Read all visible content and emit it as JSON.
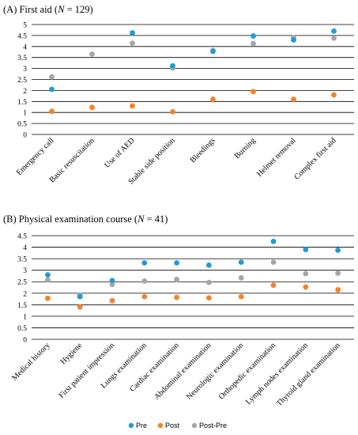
{
  "colors": {
    "pre": "#1f9bd7",
    "post": "#f5822a",
    "post_pre": "#a6a6a6"
  },
  "legend": [
    {
      "label": "Pre",
      "color": "#1f9bd7"
    },
    {
      "label": "Post",
      "color": "#f5822a"
    },
    {
      "label": "Post-Pre",
      "color": "#a6a6a6"
    }
  ],
  "chart_data": [
    {
      "type": "scatter",
      "title_prefix": "(A) First aid (",
      "title_n_label": "N",
      "title_suffix": " = 129)",
      "ylim": [
        0,
        5
      ],
      "yticks": [
        "0",
        "0.5",
        "1",
        "1.5",
        "2",
        "2.5",
        "3",
        "3.5",
        "4",
        "4.5",
        "5"
      ],
      "grid": true,
      "legend_placement": "bottom",
      "categories": [
        "Emergency call",
        "Basic resuscitation",
        "Use of AED",
        "Stable side position",
        "Bleedings",
        "Burning",
        "Helmet removal",
        "Complex first aid"
      ],
      "series": [
        {
          "name": "Pre",
          "values": [
            2.05,
            null,
            4.62,
            3.12,
            3.78,
            4.48,
            4.3,
            4.7
          ]
        },
        {
          "name": "Post",
          "values": [
            1.05,
            1.23,
            1.3,
            1.03,
            1.6,
            1.95,
            1.6,
            1.8
          ]
        },
        {
          "name": "Post-Pre",
          "values": [
            2.62,
            3.65,
            4.15,
            3.02,
            3.82,
            4.13,
            4.4,
            4.38
          ]
        }
      ]
    },
    {
      "type": "scatter",
      "title_prefix": "(B) Physical examination course (",
      "title_n_label": "N",
      "title_suffix": " = 41)",
      "ylim": [
        0,
        4.5
      ],
      "yticks": [
        "0",
        "0.5",
        "1",
        "1.5",
        "2",
        "2.5",
        "3",
        "3.5",
        "4",
        "4.5"
      ],
      "grid": true,
      "legend_placement": "bottom",
      "categories": [
        "Medical history",
        "Hygiene",
        "First patient impression",
        "Lungs examination",
        "Cardiac examination",
        "Abdominal examination",
        "Neurologic examination",
        "Orthopedic examination",
        "Lymph nodes examination",
        "Thyroid gland examination"
      ],
      "series": [
        {
          "name": "Pre",
          "values": [
            2.8,
            1.85,
            2.55,
            3.32,
            3.32,
            3.22,
            3.35,
            4.25,
            3.9,
            3.87
          ]
        },
        {
          "name": "Post",
          "values": [
            1.78,
            1.4,
            1.68,
            1.85,
            1.82,
            1.8,
            1.85,
            2.35,
            2.27,
            2.15
          ]
        },
        {
          "name": "Post-Pre",
          "values": [
            2.58,
            1.93,
            2.38,
            2.53,
            2.6,
            2.47,
            2.67,
            3.35,
            2.85,
            2.87
          ]
        }
      ]
    }
  ]
}
